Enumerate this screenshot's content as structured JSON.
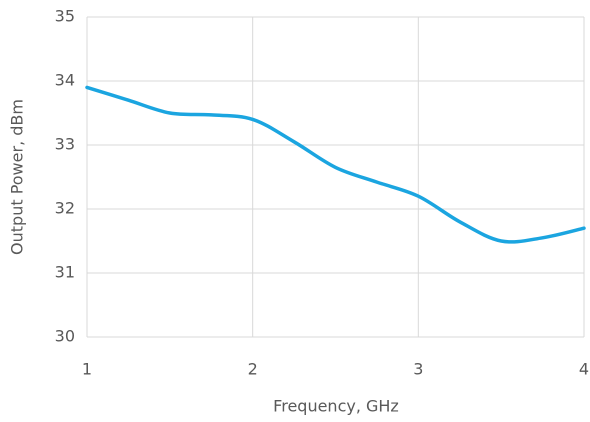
{
  "chart_data": {
    "type": "line",
    "x_label": "Frequency, GHz",
    "y_label": "Output Power, dBm",
    "x": [
      1,
      1.25,
      1.5,
      1.75,
      2,
      2.25,
      2.5,
      2.75,
      3,
      3.25,
      3.5,
      3.75,
      4
    ],
    "series": [
      {
        "color": "#1ba5e0",
        "values": [
          33.9,
          33.7,
          33.5,
          33.47,
          33.4,
          33.05,
          32.65,
          32.42,
          32.2,
          31.8,
          31.5,
          31.55,
          31.7
        ]
      }
    ],
    "xlim": [
      1,
      4
    ],
    "xticks": [
      1,
      2,
      3,
      4
    ],
    "ylim": [
      30,
      35
    ],
    "yticks": [
      30,
      31,
      32,
      33,
      34,
      35
    ],
    "grid": true
  }
}
